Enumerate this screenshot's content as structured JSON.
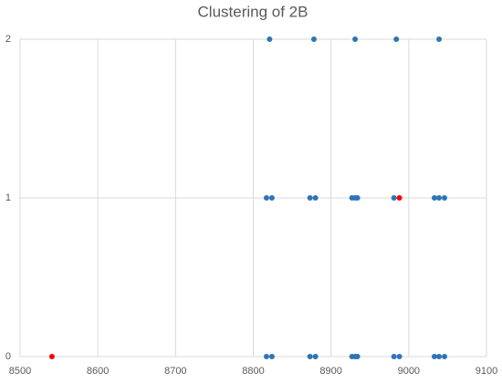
{
  "chart_data": {
    "type": "scatter",
    "title": "Clustering of 2B",
    "series": [
      {
        "color": "#2e75b6",
        "x": [
          8821,
          8878,
          8931,
          8984,
          9039,
          8817,
          8824,
          8873,
          8880,
          8927,
          8931,
          8934,
          8981,
          9033,
          9039,
          9046,
          8817,
          8824,
          8873,
          8880,
          8927,
          8931,
          8934,
          8981,
          8988,
          9033,
          9039,
          9046
        ],
        "y": [
          2,
          2,
          2,
          2,
          2,
          1,
          1,
          1,
          1,
          1,
          1,
          1,
          1,
          1,
          1,
          1,
          0,
          0,
          0,
          0,
          0,
          0,
          0,
          0,
          0,
          0,
          0,
          0
        ]
      },
      {
        "color": "#ff0000",
        "x": [
          8541,
          8988
        ],
        "y": [
          0,
          1
        ]
      }
    ],
    "xlim": [
      8500,
      9100
    ],
    "xticks": [
      8500,
      8600,
      8700,
      8800,
      8900,
      9000,
      9100
    ],
    "ylim": [
      0,
      2
    ],
    "yticks": [
      0,
      1,
      2
    ],
    "grid": true
  }
}
